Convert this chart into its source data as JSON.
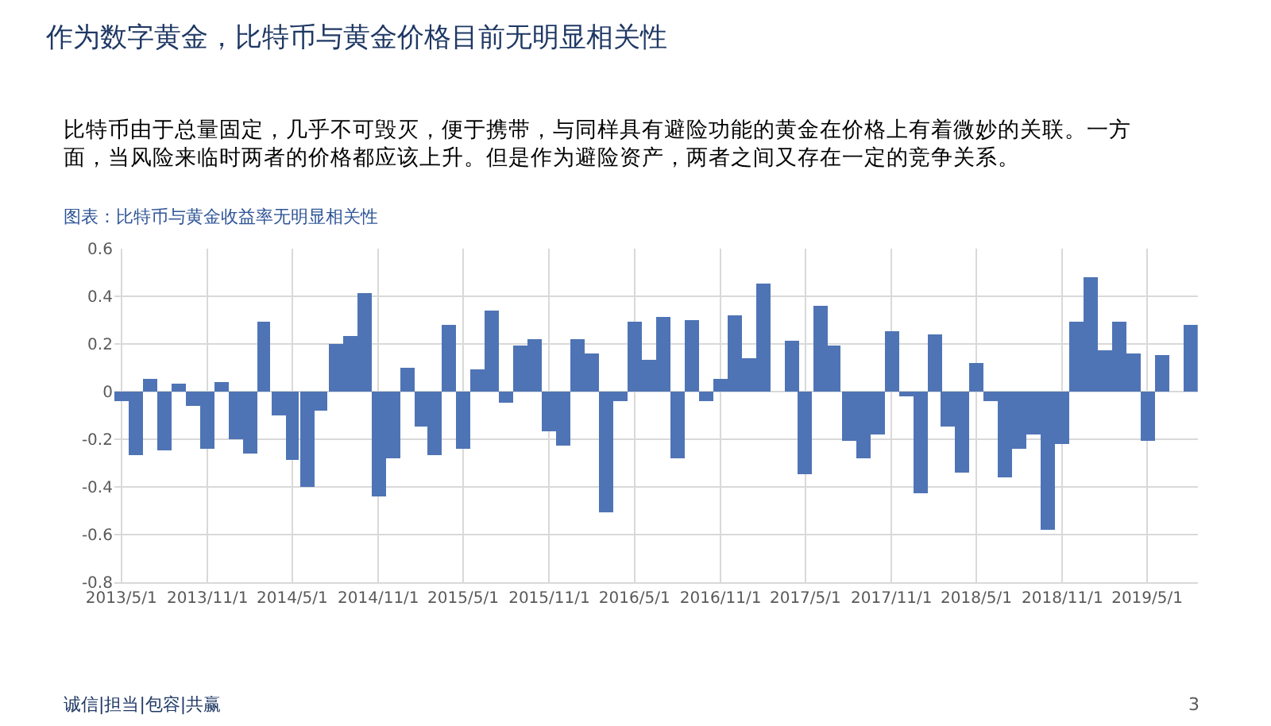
{
  "chart_data": {
    "type": "bar",
    "title": "作为数字黄金，比特币与黄金价格目前无明显相关性",
    "subtitle": "比特币由于总量固定，几乎不可毁灭，便于携带，与同样具有避险功能的黄金在价格上有着微妙的关联。一方面，当风险来临时两者的价格都应该上升。但是作为避险资产，两者之间又存在一定的竞争关系。",
    "annotations": [
      "图表：比特币与黄金收益率无明显相关性",
      "诚信|担当|包容|共赢",
      "3"
    ],
    "x": [
      "2013-05",
      "2013-06",
      "2013-07",
      "2013-08",
      "2013-09",
      "2013-10",
      "2013-11",
      "2013-12",
      "2014-01",
      "2014-02",
      "2014-03",
      "2014-04",
      "2014-05",
      "2014-06",
      "2014-07",
      "2014-08",
      "2014-09",
      "2014-10",
      "2014-11",
      "2014-12",
      "2015-01",
      "2015-02",
      "2015-03",
      "2015-04",
      "2015-05",
      "2015-06",
      "2015-07",
      "2015-08",
      "2015-09",
      "2015-10",
      "2015-11",
      "2015-12",
      "2016-01",
      "2016-02",
      "2016-03",
      "2016-04",
      "2016-05",
      "2016-06",
      "2016-07",
      "2016-08",
      "2016-09",
      "2016-10",
      "2016-11",
      "2016-12",
      "2017-01",
      "2017-02",
      "2017-03",
      "2017-04",
      "2017-05",
      "2017-06",
      "2017-07",
      "2017-08",
      "2017-09",
      "2017-10",
      "2017-11",
      "2017-12",
      "2018-01",
      "2018-02",
      "2018-03",
      "2018-04",
      "2018-05",
      "2018-06",
      "2018-07",
      "2018-08",
      "2018-09",
      "2018-10",
      "2018-11",
      "2018-12",
      "2019-01",
      "2019-02",
      "2019-03",
      "2019-04",
      "2019-05",
      "2019-06",
      "2019-07",
      "2019-08"
    ],
    "values": [
      -0.04,
      -0.27,
      0.05,
      -0.25,
      0.03,
      -0.06,
      -0.24,
      0.04,
      -0.2,
      -0.26,
      0.29,
      -0.1,
      -0.29,
      -0.4,
      -0.08,
      0.2,
      0.23,
      0.41,
      -0.44,
      -0.28,
      0.1,
      -0.15,
      -0.27,
      0.28,
      -0.24,
      0.09,
      0.34,
      -0.05,
      0.19,
      0.22,
      -0.17,
      -0.23,
      0.22,
      0.16,
      -0.51,
      -0.04,
      0.29,
      0.13,
      0.31,
      -0.28,
      0.3,
      -0.04,
      0.05,
      0.32,
      0.14,
      0.45,
      0,
      0.21,
      -0.35,
      0.36,
      0.19,
      -0.21,
      -0.28,
      -0.18,
      0.25,
      -0.02,
      -0.43,
      0.24,
      -0.15,
      -0.34,
      0.12,
      -0.04,
      -0.36,
      -0.24,
      -0.18,
      -0.58,
      -0.22,
      0.29,
      0.48,
      0.17,
      0.29,
      0.16,
      -0.21,
      0.15,
      0,
      0.28
    ],
    "color": "#4f74b5",
    "xlim": [
      "2013-04-16",
      "2019-08-17"
    ],
    "xticks": [
      {
        "value": "2013-05",
        "label": "2013/5/1"
      },
      {
        "value": "2013-11",
        "label": "2013/11/1"
      },
      {
        "value": "2014-05",
        "label": "2014/5/1"
      },
      {
        "value": "2014-11",
        "label": "2014/11/1"
      },
      {
        "value": "2015-05",
        "label": "2015/5/1"
      },
      {
        "value": "2015-11",
        "label": "2015/11/1"
      },
      {
        "value": "2016-05",
        "label": "2016/5/1"
      },
      {
        "value": "2016-11",
        "label": "2016/11/1"
      },
      {
        "value": "2017-05",
        "label": "2017/5/1"
      },
      {
        "value": "2017-11",
        "label": "2017/11/1"
      },
      {
        "value": "2018-05",
        "label": "2018/5/1"
      },
      {
        "value": "2018-11",
        "label": "2018/11/1"
      },
      {
        "value": "2019-05",
        "label": "2019/5/1"
      }
    ],
    "ylim": [
      -0.8,
      0.6
    ],
    "yticks": [
      -0.8,
      -0.6,
      -0.4,
      -0.2,
      0,
      0.2,
      0.4,
      0.6
    ],
    "grid": true
  }
}
